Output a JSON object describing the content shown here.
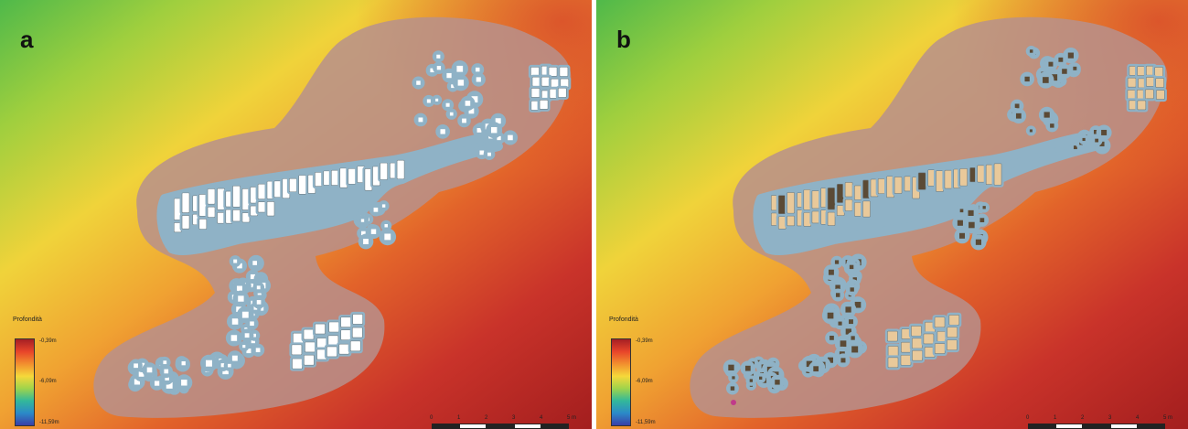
{
  "panels": [
    {
      "letter": "a",
      "footprint_fill": "#ffffff"
    },
    {
      "letter": "b",
      "footprint_fill": "#e9c99a"
    }
  ],
  "legend": {
    "title": "Profondità",
    "high_label": "-0,39m",
    "mid_label": "-6,09m",
    "low_label": "-11,59m",
    "ramp_colors": [
      "#a51f24",
      "#e8452a",
      "#f28f2e",
      "#f5d83a",
      "#9fd44b",
      "#33b89a",
      "#2b8ac8",
      "#3a3fa8"
    ]
  },
  "scalebar": {
    "ticks": [
      "0",
      "1",
      "2",
      "3",
      "4",
      "5 m"
    ]
  },
  "colors": {
    "buffer_zone": "#b7908c",
    "site_area": "#8fb2c6",
    "dark_footprint": "#5b4a35",
    "depth_shallow": "#4fb94a",
    "depth_mid": "#f0a232",
    "depth_deep": "#b3241f"
  }
}
